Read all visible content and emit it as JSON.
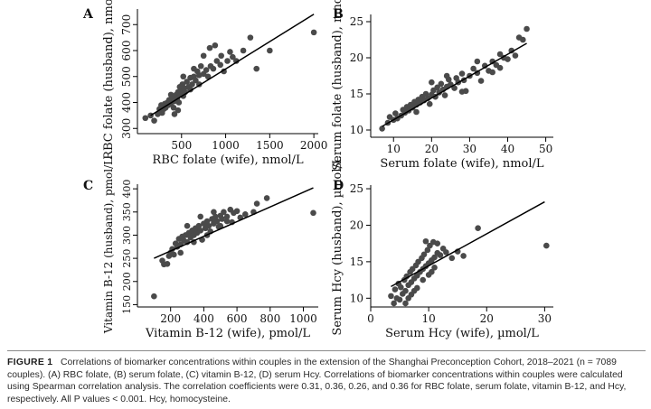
{
  "caption": {
    "label": "FIGURE 1",
    "text": "Correlations of biomarker concentrations within couples in the extension of the Shanghai Preconception Cohort, 2018–2021 (n = 7089 couples). (A) RBC folate, (B) serum folate, (C) vitamin B-12, (D) serum Hcy. Correlations of biomarker concentrations within couples were calculated using Spearman correlation analysis. The correlation coefficients were 0.31, 0.36, 0.26, and 0.36 for RBC folate, serum folate, vitamin B-12, and Hcy, respectively. All P values < 0.001. Hcy, homocysteine."
  },
  "colors": {
    "points": "#4a4a4a",
    "line": "#000000",
    "axis": "#000000",
    "text": "#111111"
  },
  "chart_data": [
    {
      "panel": "A",
      "type": "scatter",
      "xlabel": "RBC folate (wife), nmol/L",
      "ylabel": "RBC folate (husband), nmol/L",
      "xlim": [
        0,
        2050
      ],
      "ylim": [
        280,
        760
      ],
      "xticks": [
        500,
        1000,
        1500,
        2000
      ],
      "yticks": [
        300,
        400,
        500,
        600,
        700
      ],
      "fit_line": [
        [
          150,
          350
        ],
        [
          2000,
          740
        ]
      ],
      "points": [
        [
          90,
          340
        ],
        [
          150,
          350
        ],
        [
          190,
          330
        ],
        [
          230,
          355
        ],
        [
          250,
          375
        ],
        [
          270,
          390
        ],
        [
          280,
          360
        ],
        [
          300,
          375
        ],
        [
          310,
          395
        ],
        [
          320,
          380
        ],
        [
          340,
          400
        ],
        [
          350,
          390
        ],
        [
          360,
          410
        ],
        [
          380,
          395
        ],
        [
          400,
          420
        ],
        [
          410,
          380
        ],
        [
          420,
          405
        ],
        [
          440,
          430
        ],
        [
          450,
          415
        ],
        [
          460,
          440
        ],
        [
          470,
          400
        ],
        [
          480,
          460
        ],
        [
          490,
          430
        ],
        [
          500,
          445
        ],
        [
          510,
          470
        ],
        [
          520,
          425
        ],
        [
          530,
          455
        ],
        [
          540,
          440
        ],
        [
          560,
          480
        ],
        [
          580,
          460
        ],
        [
          600,
          495
        ],
        [
          620,
          470
        ],
        [
          640,
          500
        ],
        [
          660,
          485
        ],
        [
          680,
          520
        ],
        [
          700,
          505
        ],
        [
          720,
          540
        ],
        [
          750,
          510
        ],
        [
          780,
          525
        ],
        [
          800,
          500
        ],
        [
          830,
          540
        ],
        [
          860,
          530
        ],
        [
          900,
          560
        ],
        [
          940,
          545
        ],
        [
          980,
          520
        ],
        [
          1020,
          560
        ],
        [
          1050,
          595
        ],
        [
          1080,
          575
        ],
        [
          1120,
          560
        ],
        [
          1200,
          600
        ],
        [
          1280,
          650
        ],
        [
          1350,
          530
        ],
        [
          1500,
          600
        ],
        [
          2000,
          670
        ],
        [
          380,
          430
        ],
        [
          420,
          355
        ],
        [
          460,
          370
        ],
        [
          520,
          500
        ],
        [
          600,
          450
        ],
        [
          640,
          530
        ],
        [
          700,
          470
        ],
        [
          750,
          580
        ],
        [
          820,
          610
        ],
        [
          880,
          620
        ],
        [
          950,
          580
        ]
      ]
    },
    {
      "panel": "B",
      "type": "scatter",
      "xlabel": "Serum folate (wife), nmol/L",
      "ylabel": "Serum folate (husband), nmol/L",
      "xlim": [
        4,
        52
      ],
      "ylim": [
        9,
        26
      ],
      "xticks": [
        10,
        20,
        30,
        40,
        50
      ],
      "yticks": [
        10,
        15,
        20,
        25
      ],
      "fit_line": [
        [
          7,
          10.5
        ],
        [
          45,
          22
        ]
      ],
      "points": [
        [
          7,
          10.2
        ],
        [
          8.5,
          11
        ],
        [
          9,
          11.8
        ],
        [
          10,
          11.4
        ],
        [
          10.5,
          12.3
        ],
        [
          11,
          11.6
        ],
        [
          12,
          12
        ],
        [
          12.5,
          12.8
        ],
        [
          13,
          12.4
        ],
        [
          13.5,
          13.2
        ],
        [
          14,
          12.7
        ],
        [
          14.5,
          13.5
        ],
        [
          15,
          13.1
        ],
        [
          15.5,
          13.9
        ],
        [
          16,
          13.5
        ],
        [
          16.5,
          14.2
        ],
        [
          17,
          13.8
        ],
        [
          17.5,
          14.6
        ],
        [
          18,
          14.1
        ],
        [
          18.5,
          15
        ],
        [
          19,
          14.4
        ],
        [
          19.5,
          13.6
        ],
        [
          20,
          14.9
        ],
        [
          20.5,
          15.5
        ],
        [
          21,
          14.6
        ],
        [
          21.5,
          15.9
        ],
        [
          22,
          15.2
        ],
        [
          22.5,
          16.4
        ],
        [
          23,
          15.6
        ],
        [
          23.5,
          14.8
        ],
        [
          24,
          16
        ],
        [
          24.5,
          17
        ],
        [
          25,
          16.3
        ],
        [
          26,
          15.8
        ],
        [
          26.5,
          17.2
        ],
        [
          27,
          16.6
        ],
        [
          28,
          17.8
        ],
        [
          28.5,
          16.9
        ],
        [
          29,
          15.4
        ],
        [
          30,
          17.5
        ],
        [
          31,
          18.5
        ],
        [
          32,
          17.9
        ],
        [
          33,
          16.8
        ],
        [
          34,
          18.9
        ],
        [
          35,
          18.2
        ],
        [
          36,
          19.5
        ],
        [
          37,
          19
        ],
        [
          38,
          18.6
        ],
        [
          39,
          20
        ],
        [
          40,
          19.8
        ],
        [
          41,
          21
        ],
        [
          42,
          20.3
        ],
        [
          43,
          22.8
        ],
        [
          44,
          22.5
        ],
        [
          45,
          24
        ],
        [
          16,
          12.5
        ],
        [
          20,
          16.6
        ],
        [
          24,
          17.5
        ],
        [
          28,
          15.3
        ],
        [
          32,
          19.5
        ],
        [
          36,
          18
        ],
        [
          38,
          20.5
        ]
      ]
    },
    {
      "panel": "C",
      "type": "scatter",
      "xlabel": "Vitamin B-12 (wife), pmol/L",
      "ylabel": "Vitamin B-12 (husband), pmol/L",
      "xlim": [
        0,
        1090
      ],
      "ylim": [
        145,
        410
      ],
      "xticks": [
        200,
        400,
        600,
        800,
        1000
      ],
      "yticks": [
        150,
        200,
        250,
        300,
        350,
        400
      ],
      "fit_line": [
        [
          100,
          250
        ],
        [
          1060,
          402
        ]
      ],
      "points": [
        [
          100,
          168
        ],
        [
          150,
          245
        ],
        [
          160,
          237
        ],
        [
          180,
          238
        ],
        [
          190,
          255
        ],
        [
          200,
          262
        ],
        [
          210,
          270
        ],
        [
          220,
          258
        ],
        [
          230,
          282
        ],
        [
          240,
          275
        ],
        [
          250,
          292
        ],
        [
          260,
          280
        ],
        [
          270,
          297
        ],
        [
          280,
          288
        ],
        [
          290,
          300
        ],
        [
          300,
          285
        ],
        [
          310,
          305
        ],
        [
          320,
          295
        ],
        [
          330,
          310
        ],
        [
          340,
          300
        ],
        [
          350,
          315
        ],
        [
          360,
          305
        ],
        [
          370,
          320
        ],
        [
          380,
          310
        ],
        [
          390,
          290
        ],
        [
          400,
          325
        ],
        [
          410,
          315
        ],
        [
          420,
          330
        ],
        [
          430,
          320
        ],
        [
          440,
          308
        ],
        [
          450,
          335
        ],
        [
          460,
          325
        ],
        [
          470,
          340
        ],
        [
          480,
          330
        ],
        [
          490,
          318
        ],
        [
          500,
          342
        ],
        [
          510,
          335
        ],
        [
          520,
          350
        ],
        [
          540,
          340
        ],
        [
          560,
          355
        ],
        [
          570,
          328
        ],
        [
          580,
          348
        ],
        [
          600,
          352
        ],
        [
          620,
          338
        ],
        [
          650,
          345
        ],
        [
          700,
          350
        ],
        [
          720,
          368
        ],
        [
          780,
          380
        ],
        [
          1060,
          348
        ],
        [
          260,
          262
        ],
        [
          300,
          320
        ],
        [
          340,
          285
        ],
        [
          380,
          340
        ],
        [
          420,
          300
        ],
        [
          460,
          350
        ],
        [
          500,
          320
        ],
        [
          540,
          330
        ]
      ]
    },
    {
      "panel": "D",
      "type": "scatter",
      "xlabel": "Serum Hcy (wife), µmol/L",
      "ylabel": "Serum Hcy (husband), µmol/L",
      "xlim": [
        0,
        31.5
      ],
      "ylim": [
        8.8,
        25.5
      ],
      "xticks": [
        0,
        10,
        20,
        30
      ],
      "yticks": [
        10,
        15,
        20,
        25
      ],
      "fit_line": [
        [
          3.5,
          11.6
        ],
        [
          30,
          23.2
        ]
      ],
      "points": [
        [
          3.5,
          10.3
        ],
        [
          4,
          9.3
        ],
        [
          4.2,
          11.2
        ],
        [
          4.5,
          10
        ],
        [
          4.8,
          12
        ],
        [
          5,
          9.8
        ],
        [
          5.2,
          11.5
        ],
        [
          5.5,
          10.6
        ],
        [
          5.8,
          12.5
        ],
        [
          6,
          11
        ],
        [
          6.2,
          13
        ],
        [
          6.5,
          11.8
        ],
        [
          6.8,
          13.6
        ],
        [
          7,
          12.2
        ],
        [
          7.2,
          14
        ],
        [
          7.5,
          12.7
        ],
        [
          7.8,
          14.5
        ],
        [
          8,
          13.1
        ],
        [
          8.2,
          15
        ],
        [
          8.5,
          13.6
        ],
        [
          8.8,
          15.5
        ],
        [
          9,
          14
        ],
        [
          9.2,
          16
        ],
        [
          9.5,
          14.4
        ],
        [
          9.8,
          16.6
        ],
        [
          10,
          14.8
        ],
        [
          10.2,
          17.2
        ],
        [
          10.5,
          15.2
        ],
        [
          10.8,
          17.7
        ],
        [
          11,
          15.6
        ],
        [
          11.5,
          16.2
        ],
        [
          12,
          15.9
        ],
        [
          12.5,
          16.8
        ],
        [
          13,
          16.3
        ],
        [
          14,
          15.5
        ],
        [
          15,
          16.4
        ],
        [
          16,
          15.8
        ],
        [
          18.5,
          19.6
        ],
        [
          30.3,
          17.2
        ],
        [
          6,
          9.3
        ],
        [
          6.5,
          10
        ],
        [
          7,
          10.5
        ],
        [
          7.5,
          11
        ],
        [
          8,
          11.4
        ],
        [
          9,
          12.5
        ],
        [
          10,
          13.2
        ],
        [
          10.5,
          13.6
        ],
        [
          11,
          14.2
        ],
        [
          11.5,
          17.5
        ],
        [
          9.5,
          17.8
        ]
      ]
    }
  ]
}
